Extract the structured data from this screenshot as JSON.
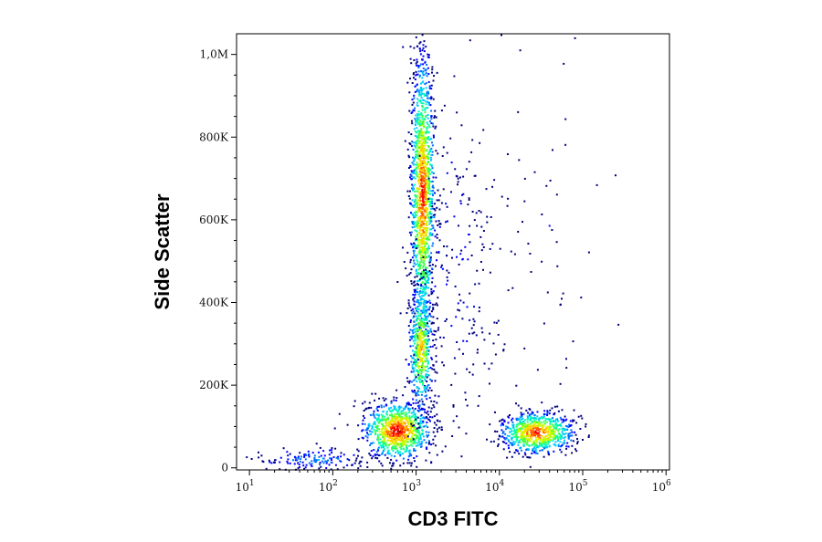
{
  "chart_data": {
    "type": "scatter",
    "xlabel": "CD3 FITC",
    "ylabel": "Side Scatter",
    "x_scale": "log",
    "xlim": [
      7,
      1100000
    ],
    "ylim": [
      -5000,
      1050000
    ],
    "x_ticks": [
      {
        "value": 10,
        "base": "10",
        "exp": "1"
      },
      {
        "value": 100,
        "base": "10",
        "exp": "2"
      },
      {
        "value": 1000,
        "base": "10",
        "exp": "3"
      },
      {
        "value": 10000,
        "base": "10",
        "exp": "4"
      },
      {
        "value": 100000,
        "base": "10",
        "exp": "5"
      },
      {
        "value": 1000000,
        "base": "10",
        "exp": "6"
      }
    ],
    "y_ticks": [
      {
        "value": 0,
        "label": "0"
      },
      {
        "value": 200000,
        "label": "200K"
      },
      {
        "value": 400000,
        "label": "400K"
      },
      {
        "value": 600000,
        "label": "600K"
      },
      {
        "value": 800000,
        "label": "800K"
      },
      {
        "value": 1000000,
        "label": "1,0M"
      }
    ],
    "grid": false,
    "colormap": [
      "#00007f",
      "#0000ff",
      "#0070ff",
      "#00c8ff",
      "#00ffb0",
      "#40ff40",
      "#c8ff00",
      "#ffd200",
      "#ff6000",
      "#ff0000",
      "#b00000"
    ],
    "populations": [
      {
        "name": "",
        "x_center": 600,
        "y_center": 90000,
        "x_spread_decades": 0.2,
        "y_spread": 35000,
        "points": 900,
        "density": 0.95
      },
      {
        "name": "",
        "x_center": 1200,
        "y_center": 660000,
        "x_spread_decades": 0.07,
        "y_spread": 170000,
        "points": 1400,
        "density": 0.9
      },
      {
        "name": "",
        "x_center": 1150,
        "y_center": 290000,
        "x_spread_decades": 0.07,
        "y_spread": 80000,
        "points": 500,
        "density": 0.75
      },
      {
        "name": "",
        "x_center": 28000,
        "y_center": 85000,
        "x_spread_decades": 0.22,
        "y_spread": 25000,
        "points": 750,
        "density": 0.9
      },
      {
        "name": "",
        "x_center": 60,
        "y_center": 20000,
        "x_spread_decades": 0.35,
        "y_spread": 15000,
        "points": 150,
        "density": 0.25
      },
      {
        "name": "",
        "x_center": 3000,
        "y_center": 450000,
        "x_spread_decades": 0.25,
        "y_spread": 200000,
        "points": 220,
        "density": 0.1
      },
      {
        "name": "",
        "x_center": 30000,
        "y_center": 550000,
        "x_spread_decades": 0.4,
        "y_spread": 250000,
        "points": 60,
        "density": 0.05
      }
    ]
  }
}
